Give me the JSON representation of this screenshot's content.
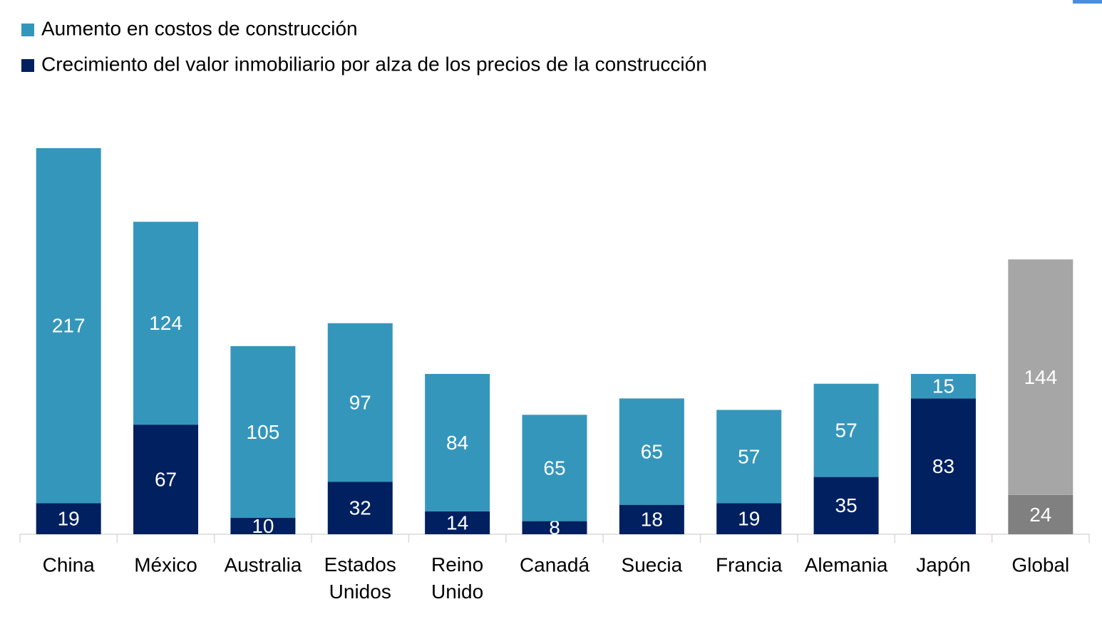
{
  "chart_data": {
    "type": "stacked_bar",
    "categories": [
      "China",
      "México",
      "Australia",
      "Estados Unidos",
      "Reino Unido",
      "Canadá",
      "Suecia",
      "Francia",
      "Alemania",
      "Japón",
      "Global"
    ],
    "series": [
      {
        "name": "Crecimiento del valor inmobiliario por alza de los precios de la construcción",
        "color": "#002060",
        "values": [
          19,
          67,
          10,
          32,
          14,
          8,
          18,
          19,
          35,
          83,
          24
        ],
        "colors": [
          "#002060",
          "#002060",
          "#002060",
          "#002060",
          "#002060",
          "#002060",
          "#002060",
          "#002060",
          "#002060",
          "#002060",
          "#808080"
        ]
      },
      {
        "name": "Aumento en costos de construcción",
        "color": "#3596bc",
        "values": [
          217,
          124,
          105,
          97,
          84,
          65,
          65,
          57,
          57,
          15,
          144
        ],
        "colors": [
          "#3596bc",
          "#3596bc",
          "#3596bc",
          "#3596bc",
          "#3596bc",
          "#3596bc",
          "#3596bc",
          "#3596bc",
          "#3596bc",
          "#3596bc",
          "#a6a6a6"
        ]
      }
    ],
    "legend_order": [
      1,
      0
    ]
  }
}
